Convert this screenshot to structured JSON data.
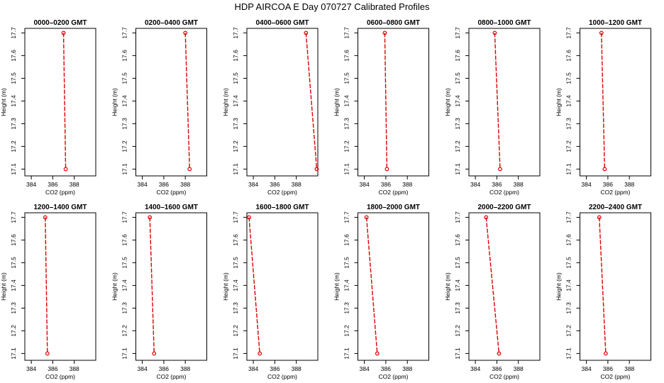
{
  "title": "HDP  AIRCOA E  Day 070727  Calibrated Profiles",
  "colors": {
    "profile": "#dd0000",
    "axis": "#000000"
  },
  "chart_data": [
    {
      "type": "line",
      "title": "0000–0200 GMT",
      "xlabel": "CO2 (ppm)",
      "ylabel": "Height (m)",
      "xticks": [
        384,
        386,
        388
      ],
      "yticks": [
        17.1,
        17.2,
        17.3,
        17.4,
        17.5,
        17.6,
        17.7
      ],
      "xlim": [
        383.4,
        390.0
      ],
      "ylim": [
        17.07,
        17.72
      ],
      "series": [
        {
          "x": [
            387.0,
            387.2
          ],
          "y": [
            17.7,
            17.1
          ]
        }
      ]
    },
    {
      "type": "line",
      "title": "0200–0400 GMT",
      "xlabel": "CO2 (ppm)",
      "ylabel": "Height (m)",
      "xticks": [
        384,
        386,
        388
      ],
      "yticks": [
        17.1,
        17.2,
        17.3,
        17.4,
        17.5,
        17.6,
        17.7
      ],
      "xlim": [
        383.4,
        390.0
      ],
      "ylim": [
        17.07,
        17.72
      ],
      "series": [
        {
          "x": [
            388.0,
            388.4
          ],
          "y": [
            17.7,
            17.1
          ]
        }
      ]
    },
    {
      "type": "line",
      "title": "0400–0600 GMT",
      "xlabel": "CO2 (ppm)",
      "ylabel": "Height (m)",
      "xticks": [
        384,
        386,
        388
      ],
      "yticks": [
        17.1,
        17.2,
        17.3,
        17.4,
        17.5,
        17.6,
        17.7
      ],
      "xlim": [
        383.4,
        390.0
      ],
      "ylim": [
        17.07,
        17.72
      ],
      "series": [
        {
          "x": [
            388.9,
            389.9
          ],
          "y": [
            17.7,
            17.1
          ]
        }
      ]
    },
    {
      "type": "line",
      "title": "0600–0800 GMT",
      "xlabel": "CO2 (ppm)",
      "ylabel": "Height (m)",
      "xticks": [
        384,
        386,
        388
      ],
      "yticks": [
        17.1,
        17.2,
        17.3,
        17.4,
        17.5,
        17.6,
        17.7
      ],
      "xlim": [
        383.4,
        390.0
      ],
      "ylim": [
        17.07,
        17.72
      ],
      "series": [
        {
          "x": [
            385.9,
            386.1
          ],
          "y": [
            17.7,
            17.1
          ]
        }
      ]
    },
    {
      "type": "line",
      "title": "0800–1000 GMT",
      "xlabel": "CO2 (ppm)",
      "ylabel": "Height (m)",
      "xticks": [
        384,
        386,
        388
      ],
      "yticks": [
        17.1,
        17.2,
        17.3,
        17.4,
        17.5,
        17.6,
        17.7
      ],
      "xlim": [
        383.4,
        390.0
      ],
      "ylim": [
        17.07,
        17.72
      ],
      "series": [
        {
          "x": [
            385.8,
            386.3
          ],
          "y": [
            17.7,
            17.1
          ]
        }
      ]
    },
    {
      "type": "line",
      "title": "1000–1200 GMT",
      "xlabel": "CO2 (ppm)",
      "ylabel": "Height (m)",
      "xticks": [
        384,
        386,
        388
      ],
      "yticks": [
        17.1,
        17.2,
        17.3,
        17.4,
        17.5,
        17.6,
        17.7
      ],
      "xlim": [
        383.4,
        390.0
      ],
      "ylim": [
        17.07,
        17.72
      ],
      "series": [
        {
          "x": [
            385.4,
            385.7
          ],
          "y": [
            17.7,
            17.1
          ]
        }
      ]
    },
    {
      "type": "line",
      "title": "1200–1400 GMT",
      "xlabel": "CO2 (ppm)",
      "ylabel": "Height (m)",
      "xticks": [
        384,
        386,
        388
      ],
      "yticks": [
        17.1,
        17.2,
        17.3,
        17.4,
        17.5,
        17.6,
        17.7
      ],
      "xlim": [
        383.4,
        390.0
      ],
      "ylim": [
        17.07,
        17.72
      ],
      "series": [
        {
          "x": [
            385.3,
            385.5
          ],
          "y": [
            17.7,
            17.1
          ]
        }
      ]
    },
    {
      "type": "line",
      "title": "1400–1600 GMT",
      "xlabel": "CO2 (ppm)",
      "ylabel": "Height (m)",
      "xticks": [
        384,
        386,
        388
      ],
      "yticks": [
        17.1,
        17.2,
        17.3,
        17.4,
        17.5,
        17.6,
        17.7
      ],
      "xlim": [
        383.4,
        390.0
      ],
      "ylim": [
        17.07,
        17.72
      ],
      "series": [
        {
          "x": [
            384.7,
            385.1
          ],
          "y": [
            17.7,
            17.1
          ]
        }
      ]
    },
    {
      "type": "line",
      "title": "1600–1800 GMT",
      "xlabel": "CO2 (ppm)",
      "ylabel": "Height (m)",
      "xticks": [
        384,
        386,
        388
      ],
      "yticks": [
        17.1,
        17.2,
        17.3,
        17.4,
        17.5,
        17.6,
        17.7
      ],
      "xlim": [
        383.4,
        390.0
      ],
      "ylim": [
        17.07,
        17.72
      ],
      "series": [
        {
          "x": [
            383.6,
            384.6
          ],
          "y": [
            17.7,
            17.1
          ]
        }
      ]
    },
    {
      "type": "line",
      "title": "1800–2000 GMT",
      "xlabel": "CO2 (ppm)",
      "ylabel": "Height (m)",
      "xticks": [
        384,
        386,
        388
      ],
      "yticks": [
        17.1,
        17.2,
        17.3,
        17.4,
        17.5,
        17.6,
        17.7
      ],
      "xlim": [
        383.4,
        390.0
      ],
      "ylim": [
        17.07,
        17.72
      ],
      "series": [
        {
          "x": [
            384.2,
            385.2
          ],
          "y": [
            17.7,
            17.1
          ]
        }
      ]
    },
    {
      "type": "line",
      "title": "2000–2200 GMT",
      "xlabel": "CO2 (ppm)",
      "ylabel": "Height (m)",
      "xticks": [
        384,
        386,
        388
      ],
      "yticks": [
        17.1,
        17.2,
        17.3,
        17.4,
        17.5,
        17.6,
        17.7
      ],
      "xlim": [
        383.4,
        390.0
      ],
      "ylim": [
        17.07,
        17.72
      ],
      "series": [
        {
          "x": [
            385.0,
            386.2
          ],
          "y": [
            17.7,
            17.1
          ]
        }
      ]
    },
    {
      "type": "line",
      "title": "2200–2400 GMT",
      "xlabel": "CO2 (ppm)",
      "ylabel": "Height (m)",
      "xticks": [
        384,
        386,
        388
      ],
      "yticks": [
        17.1,
        17.2,
        17.3,
        17.4,
        17.5,
        17.6,
        17.7
      ],
      "xlim": [
        383.4,
        390.0
      ],
      "ylim": [
        17.07,
        17.72
      ],
      "series": [
        {
          "x": [
            385.2,
            385.8
          ],
          "y": [
            17.7,
            17.1
          ]
        }
      ]
    }
  ]
}
